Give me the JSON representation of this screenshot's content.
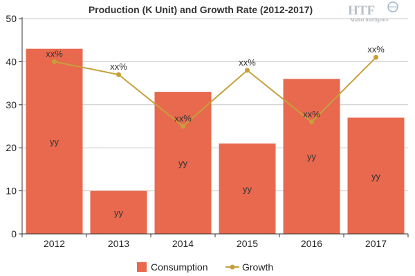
{
  "logo": {
    "brand": "HTF",
    "tagline": "Market Intelligence"
  },
  "colors": {
    "bar": "#e8694e",
    "line": "#c5a03a",
    "grid": "#c8c8c8",
    "axis": "#333333"
  },
  "chart_data": {
    "type": "bar",
    "title": "Production (K Unit) and Growth Rate (2012-2017)",
    "xlabel": "",
    "ylabel": "",
    "categories": [
      "2012",
      "2013",
      "2014",
      "2015",
      "2016",
      "2017"
    ],
    "ylim": [
      0,
      50
    ],
    "yticks": [
      0,
      10,
      20,
      30,
      40,
      50
    ],
    "grid": true,
    "legend_position": "bottom",
    "series": [
      {
        "name": "Consumption",
        "type": "bar",
        "values": [
          43,
          10,
          33,
          21,
          36,
          27
        ],
        "labels": [
          "yy",
          "yy",
          "yy",
          "yy",
          "yy",
          "yy"
        ]
      },
      {
        "name": "Growth",
        "type": "line",
        "values": [
          40,
          37,
          25,
          38,
          26,
          41
        ],
        "labels": [
          "xx%",
          "xx%",
          "xx%",
          "xx%",
          "xx%",
          "xx%"
        ]
      }
    ]
  }
}
